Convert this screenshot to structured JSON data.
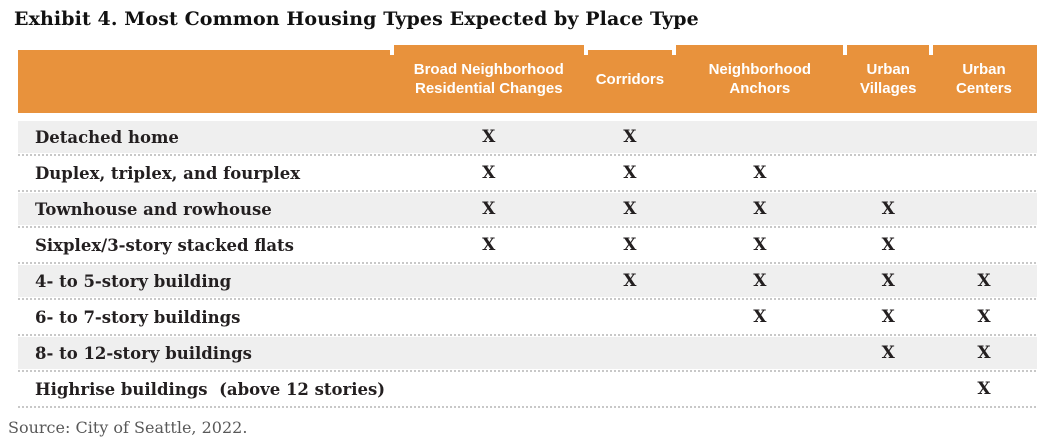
{
  "title": "Exhibit 4. Most Common Housing Types Expected by Place Type",
  "source_note": "Source: City of Seattle, 2022.",
  "colors": {
    "page_bg": "#FFFFFF",
    "header_bg": "#E8923C",
    "header_text": "#FFFFFF",
    "row_shaded_bg": "#EFEFEF",
    "row_plain_bg": "#FFFFFF",
    "body_text": "#231F20",
    "title_text": "#111111",
    "source_text": "#595959",
    "dotted_line": "#C8C8C8"
  },
  "table": {
    "mark_symbol": "X",
    "columns": [
      "Broad Neighborhood Residential Changes",
      "Corridors",
      "Neighborhood Anchors",
      "Urban Villages",
      "Urban Centers"
    ],
    "rows": [
      {
        "label": "Detached home",
        "marks": [
          "X",
          "X",
          "",
          "",
          ""
        ]
      },
      {
        "label": "Duplex, triplex, and fourplex",
        "marks": [
          "X",
          "X",
          "X",
          "",
          ""
        ]
      },
      {
        "label": "Townhouse and rowhouse",
        "marks": [
          "X",
          "X",
          "X",
          "X",
          ""
        ]
      },
      {
        "label": "Sixplex/3-story stacked flats",
        "marks": [
          "X",
          "X",
          "X",
          "X",
          ""
        ]
      },
      {
        "label": "4- to 5-story building",
        "marks": [
          "",
          "X",
          "X",
          "X",
          "X"
        ]
      },
      {
        "label": "6- to 7-story buildings",
        "marks": [
          "",
          "",
          "X",
          "X",
          "X"
        ]
      },
      {
        "label": "8- to 12-story buildings",
        "marks": [
          "",
          "",
          "",
          "X",
          "X"
        ]
      },
      {
        "label": "Highrise buildings  (above 12 stories)",
        "marks": [
          "",
          "",
          "",
          "",
          "X"
        ]
      }
    ]
  }
}
